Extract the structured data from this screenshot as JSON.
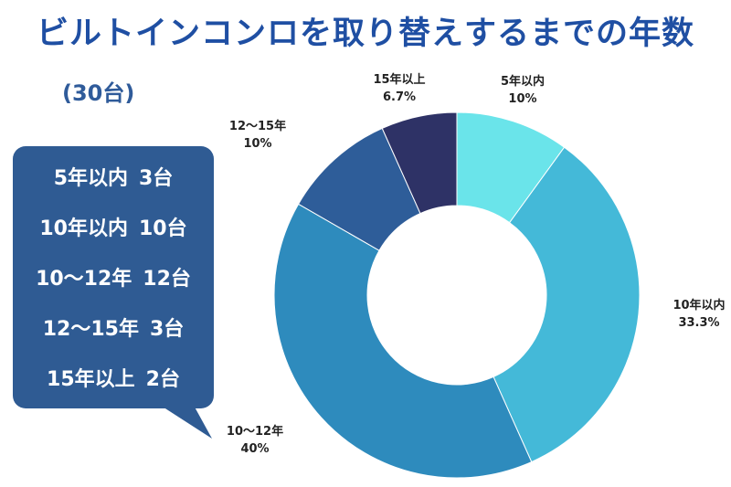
{
  "title": "ビルトインコンロを取り替えするまでの年数",
  "subtitle": "(30台)",
  "legend_items": [
    {
      "label": "5年以内",
      "count": "3台"
    },
    {
      "label": "10年以内",
      "count": "10台"
    },
    {
      "label": "10〜12年",
      "count": "12台"
    },
    {
      "label": "12〜15年",
      "count": "3台"
    },
    {
      "label": "15年以上",
      "count": "2台"
    }
  ],
  "colors": {
    "title": "#1f4fa3",
    "bubble": "#2f5b93",
    "slices": [
      "#6ae4ea",
      "#44b9d8",
      "#2e8bbd",
      "#2e5d99",
      "#2e3266"
    ]
  },
  "chart_data": {
    "type": "pie",
    "style": "donut",
    "categories": [
      "5年以内",
      "10年以内",
      "10〜12年",
      "12〜15年",
      "15年以上"
    ],
    "values": [
      10,
      33.3,
      40,
      10,
      6.7
    ],
    "value_labels": [
      "10%",
      "33.3%",
      "40%",
      "10%",
      "6.7%"
    ],
    "counts": [
      3,
      10,
      12,
      3,
      2
    ],
    "start": "12 o'clock",
    "direction": "clockwise"
  }
}
